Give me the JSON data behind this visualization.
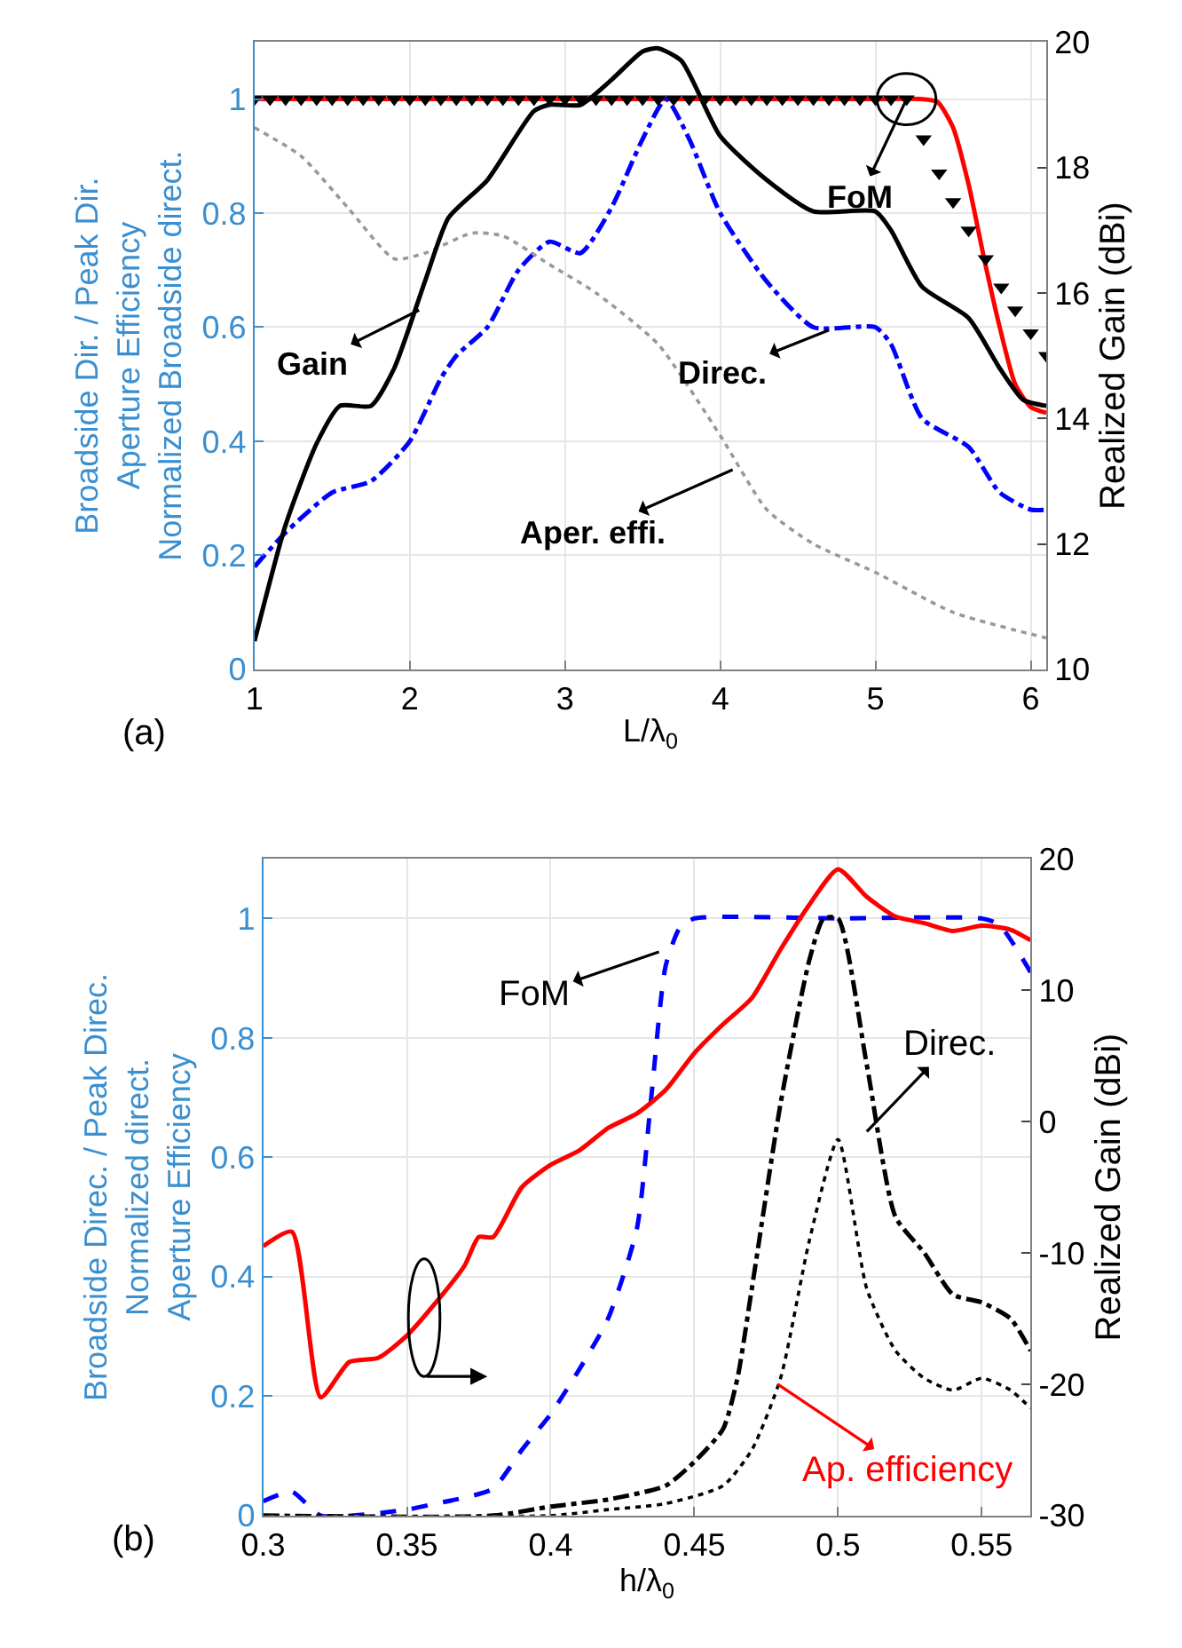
{
  "chart_data": [
    {
      "type": "line",
      "xlabel": "L/λ$_{0}$",
      "ylabel": "Broadside Dir. / Peak Dir.\nAperture Efficiency\nNormalized Broadside direct.",
      "y2label": "Realized Gain (dBi)",
      "xlim": [
        1,
        6.1
      ],
      "xticks": [
        1,
        2,
        3,
        4,
        5,
        6
      ],
      "ylim": [
        0,
        1.1
      ],
      "yticks": [
        0,
        0.2,
        0.4,
        0.6,
        0.8,
        1
      ],
      "y2lim": [
        10,
        20
      ],
      "y2ticks": [
        10,
        12,
        14,
        16,
        18,
        20
      ],
      "grid": true,
      "annotations": [
        {
          "text": "Gain",
          "x": 2.06,
          "y": 0.63
        },
        {
          "text": "Direc.",
          "x": 4.7,
          "y": 0.595
        },
        {
          "text": "FoM",
          "x": 5.2,
          "y": 1
        },
        {
          "text": "Aper. effi.",
          "x": 4.08,
          "y": 0.35
        },
        "(a)"
      ],
      "series": [
        {
          "type": "scatter",
          "marker": "triangle",
          "color": "#000000",
          "x": [
            1.0,
            1.1,
            1.2,
            1.3,
            1.4,
            1.5,
            1.6,
            1.7,
            1.8,
            1.9,
            2.0,
            2.1,
            2.2,
            2.3,
            2.4,
            2.5,
            2.6,
            2.7,
            2.8,
            2.9,
            3.0,
            3.1,
            3.2,
            3.3,
            3.4,
            3.5,
            3.6,
            3.7,
            3.8,
            3.9,
            4.0,
            4.1,
            4.2,
            4.3,
            4.4,
            4.5,
            4.6,
            4.7,
            4.8,
            4.9,
            5.0,
            5.1,
            5.2,
            5.31,
            5.41,
            5.5,
            5.6,
            5.71,
            5.81,
            5.9,
            6.0,
            6.1
          ],
          "values": [
            1,
            1,
            1,
            1,
            1,
            1,
            1,
            1,
            1,
            1,
            1,
            1,
            1,
            1,
            1,
            1,
            1,
            1,
            1,
            1,
            1,
            1,
            1,
            1,
            1,
            1,
            1,
            1,
            1,
            1,
            1,
            1,
            1,
            1,
            1,
            1,
            1,
            1,
            1,
            1,
            1,
            1,
            1,
            0.93,
            0.87,
            0.82,
            0.77,
            0.72,
            0.67,
            0.63,
            0.59,
            0.55
          ]
        },
        {
          "type": "line",
          "line_style": "solid",
          "color": "#ff0000",
          "x": [
            1,
            2,
            3,
            4,
            5,
            5.3,
            5.4,
            5.5,
            5.6,
            5.7,
            5.8,
            5.9,
            6.0,
            6.1
          ],
          "values": [
            1,
            1,
            1,
            1,
            1,
            1,
            0.995,
            0.95,
            0.85,
            0.72,
            0.6,
            0.5,
            0.46,
            0.45
          ]
        },
        {
          "type": "line",
          "line_style": "solid",
          "color": "#000000",
          "axis": "y2",
          "x": [
            1,
            1.2,
            1.4,
            1.55,
            1.75,
            1.9,
            2.1,
            2.25,
            2.5,
            2.8,
            2.9,
            3.1,
            3.3,
            3.5,
            3.6,
            3.75,
            4.0,
            4.3,
            4.6,
            5.0,
            5.1,
            5.3,
            5.6,
            5.8,
            5.95,
            6.1
          ],
          "values": [
            10.45,
            12.3,
            13.6,
            14.2,
            14.2,
            14.8,
            16.2,
            17.2,
            17.8,
            18.9,
            19.0,
            19.0,
            19.4,
            19.85,
            19.9,
            19.7,
            18.5,
            17.8,
            17.3,
            17.3,
            17.0,
            16.1,
            15.6,
            14.8,
            14.3,
            14.2
          ]
        },
        {
          "type": "line",
          "line_style": "dashdot",
          "color": "#0000ff",
          "x": [
            1,
            1.2,
            1.5,
            1.75,
            2.0,
            2.2,
            2.3,
            2.5,
            2.7,
            2.9,
            3.1,
            3.3,
            3.5,
            3.65,
            3.8,
            4.0,
            4.3,
            4.6,
            5.0,
            5.1,
            5.3,
            5.6,
            5.8,
            6.0,
            6.1
          ],
          "values": [
            0.18,
            0.24,
            0.31,
            0.33,
            0.4,
            0.51,
            0.55,
            0.6,
            0.7,
            0.75,
            0.73,
            0.81,
            0.93,
            1.0,
            0.93,
            0.8,
            0.68,
            0.6,
            0.6,
            0.57,
            0.44,
            0.39,
            0.31,
            0.28,
            0.28
          ]
        },
        {
          "type": "line",
          "line_style": "dotted",
          "color": "#999999",
          "x": [
            1,
            1.3,
            1.6,
            1.9,
            2.1,
            2.4,
            2.6,
            2.9,
            3.2,
            3.6,
            4.0,
            4.3,
            4.6,
            5.0,
            5.5,
            6.1
          ],
          "values": [
            0.95,
            0.9,
            0.81,
            0.72,
            0.73,
            0.765,
            0.76,
            0.71,
            0.66,
            0.57,
            0.41,
            0.28,
            0.22,
            0.17,
            0.1,
            0.055
          ]
        }
      ]
    },
    {
      "type": "line",
      "xlabel": "h/λ$_{0}$",
      "ylabel": "Broadside Direc. / Peak Direc.\nNormalized direct.\nAperture Efficiency",
      "y2label": "Realized Gain (dBi)",
      "xlim": [
        0.3,
        0.567
      ],
      "xticks": [
        0.3,
        0.35,
        0.4,
        0.45,
        0.5,
        0.55
      ],
      "ylim": [
        0,
        1.1
      ],
      "yticks": [
        0,
        0.2,
        0.4,
        0.6,
        0.8,
        1
      ],
      "y2lim": [
        -30,
        20
      ],
      "y2ticks": [
        -30,
        -20,
        -10,
        0,
        10,
        20
      ],
      "grid": true,
      "annotations": [
        {
          "text": "FoM",
          "x": 0.4377,
          "y": 0.944
        },
        {
          "text": "Direc.",
          "x": 0.51,
          "y": 0.643
        },
        {
          "text": "Ap. efficiency",
          "x": 0.479,
          "y": 0.22
        },
        "(b)"
      ],
      "series": [
        {
          "type": "line",
          "line_style": "solid",
          "color": "#ff0000",
          "axis": "y2",
          "x": [
            0.3,
            0.31,
            0.32,
            0.33,
            0.34,
            0.35,
            0.36,
            0.37,
            0.375,
            0.38,
            0.39,
            0.4,
            0.41,
            0.42,
            0.43,
            0.44,
            0.45,
            0.46,
            0.47,
            0.48,
            0.49,
            0.5,
            0.51,
            0.52,
            0.53,
            0.54,
            0.55,
            0.56,
            0.567
          ],
          "values": [
            -9.5,
            -8.4,
            -21.0,
            -18.3,
            -18.0,
            -16.3,
            -13.8,
            -11.0,
            -8.8,
            -8.8,
            -5.0,
            -3.3,
            -2.2,
            -0.5,
            0.6,
            2.4,
            5.2,
            7.4,
            9.4,
            13.1,
            16.5,
            19.2,
            17.1,
            15.6,
            15.1,
            14.5,
            14.9,
            14.6,
            13.8
          ]
        },
        {
          "type": "line",
          "line_style": "dashed",
          "color": "#0000ff",
          "x": [
            0.3,
            0.31,
            0.32,
            0.35,
            0.36,
            0.37,
            0.38,
            0.39,
            0.4,
            0.41,
            0.42,
            0.43,
            0.435,
            0.44,
            0.445,
            0.45,
            0.5,
            0.55,
            0.556,
            0.567
          ],
          "values": [
            0.024,
            0.04,
            0.0,
            0.01,
            0.02,
            0.03,
            0.045,
            0.11,
            0.17,
            0.245,
            0.33,
            0.48,
            0.7,
            0.92,
            0.985,
            1.0,
            1.0,
            1.0,
            0.99,
            0.91
          ]
        },
        {
          "type": "line",
          "line_style": "dashdot",
          "color": "#000000",
          "x": [
            0.3,
            0.38,
            0.4,
            0.42,
            0.44,
            0.45,
            0.46,
            0.465,
            0.47,
            0.48,
            0.49,
            0.495,
            0.5,
            0.51,
            0.52,
            0.53,
            0.54,
            0.55,
            0.56,
            0.567
          ],
          "values": [
            0,
            0,
            0.015,
            0.027,
            0.05,
            0.09,
            0.145,
            0.23,
            0.38,
            0.69,
            0.93,
            1.0,
            1.0,
            0.755,
            0.5,
            0.44,
            0.37,
            0.357,
            0.33,
            0.276
          ]
        },
        {
          "type": "line",
          "line_style": "dotted",
          "color": "#000000",
          "x": [
            0.3,
            0.4,
            0.42,
            0.44,
            0.46,
            0.47,
            0.48,
            0.49,
            0.5,
            0.51,
            0.52,
            0.53,
            0.54,
            0.55,
            0.56,
            0.567
          ],
          "values": [
            0,
            0,
            0.01,
            0.02,
            0.05,
            0.11,
            0.23,
            0.46,
            0.63,
            0.38,
            0.276,
            0.23,
            0.21,
            0.23,
            0.21,
            0.18
          ]
        }
      ]
    }
  ]
}
